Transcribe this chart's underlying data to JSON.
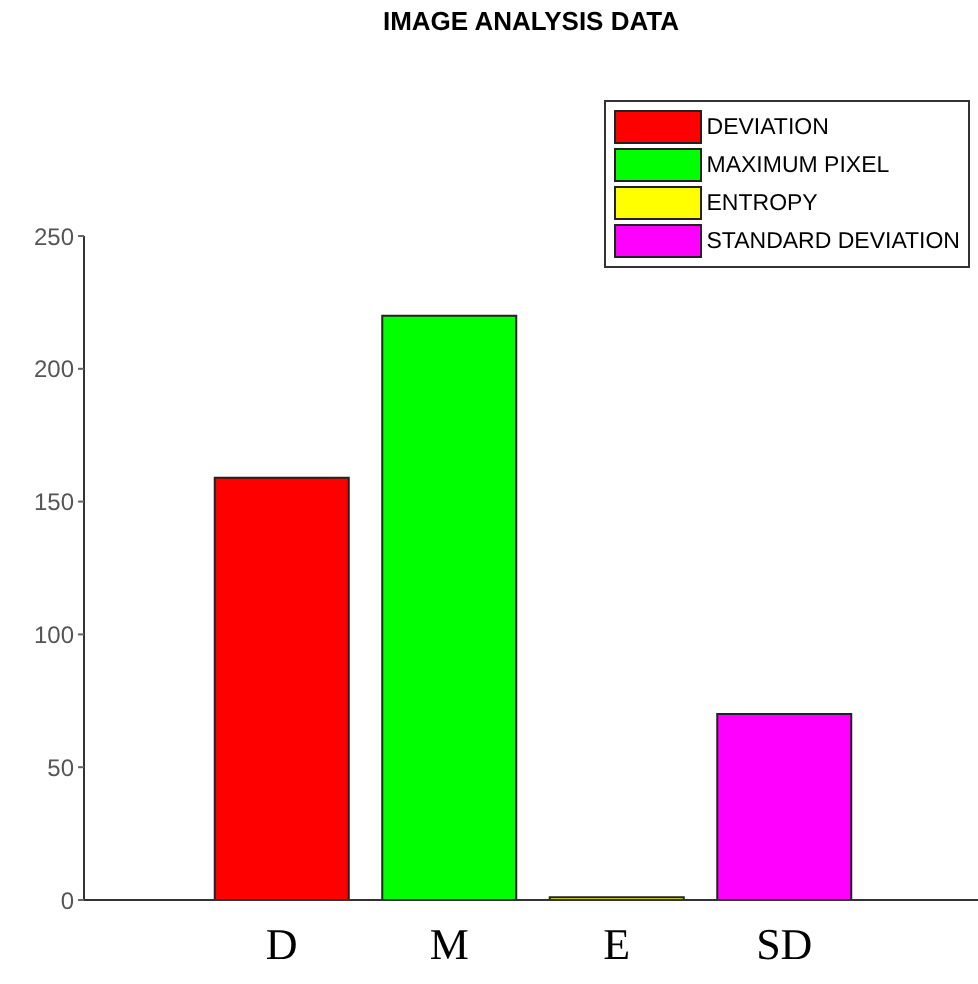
{
  "chart_data": {
    "type": "bar",
    "title": "IMAGE ANALYSIS DATA",
    "categories": [
      "D",
      "M",
      "E",
      "SD"
    ],
    "series": [
      {
        "name": "DEVIATION",
        "color": "#ff0000",
        "values": [
          159,
          null,
          null,
          null
        ]
      },
      {
        "name": "MAXIMUM PIXEL",
        "color": "#00ff00",
        "values": [
          null,
          220,
          null,
          null
        ]
      },
      {
        "name": "ENTROPY",
        "color": "#ffff00",
        "values": [
          null,
          null,
          1,
          null
        ]
      },
      {
        "name": "STANDARD DEVIATION",
        "color": "#ff00ff",
        "values": [
          null,
          null,
          null,
          70
        ]
      }
    ],
    "ylim": [
      0,
      250
    ],
    "yticks": [
      0,
      50,
      100,
      150,
      200,
      250
    ],
    "grid": false,
    "legend": "top right"
  }
}
